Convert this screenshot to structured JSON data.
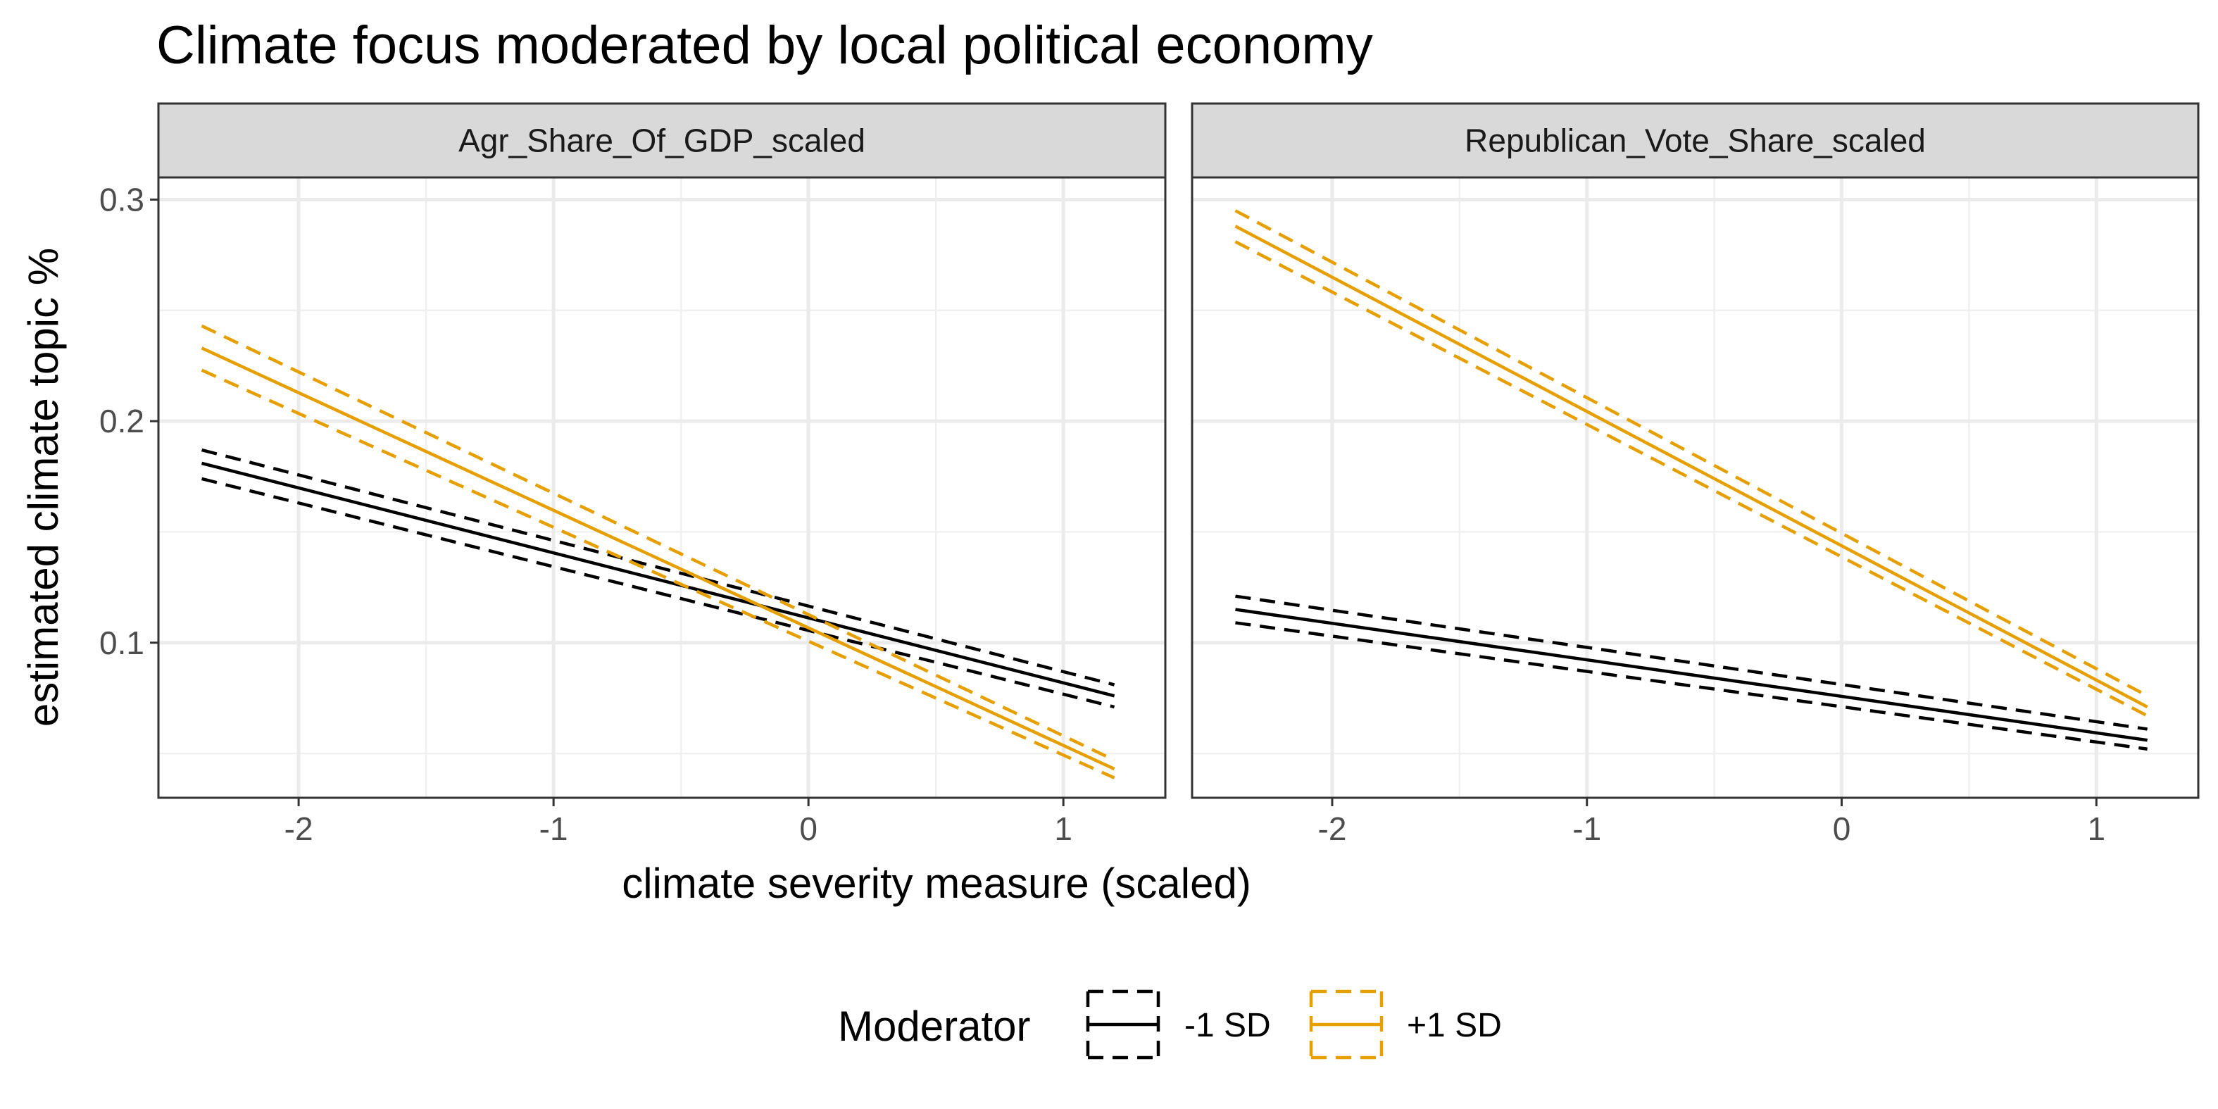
{
  "chart_data": {
    "type": "line",
    "title": "Climate focus moderated by local political economy",
    "xlabel": "climate severity measure (scaled)",
    "ylabel": "estimated climate topic %",
    "xlim": [
      -2.55,
      1.4
    ],
    "ylim": [
      0.03,
      0.31
    ],
    "x_ticks": [
      -2,
      -1,
      0,
      1
    ],
    "x_tick_labels": [
      "-2",
      "-1",
      "0",
      "1"
    ],
    "y_ticks": [
      0.1,
      0.2,
      0.3
    ],
    "y_tick_labels": [
      "0.1",
      "0.2",
      "0.3"
    ],
    "grid": true,
    "legend": {
      "title": "Moderator",
      "position": "bottom",
      "entries": [
        {
          "label": "-1 SD",
          "color": "#000000"
        },
        {
          "label": "+1 SD",
          "color": "#E69F00"
        }
      ]
    },
    "panels": [
      {
        "strip": "Agr_Share_Of_GDP_scaled",
        "series": [
          {
            "name": "-1 SD",
            "color": "#000000",
            "x": [
              -2.38,
              1.2
            ],
            "fit": [
              0.181,
              0.076
            ],
            "lower": [
              0.174,
              0.071
            ],
            "upper": [
              0.187,
              0.081
            ]
          },
          {
            "name": "+1 SD",
            "color": "#E69F00",
            "x": [
              -2.38,
              1.2
            ],
            "fit": [
              0.233,
              0.043
            ],
            "lower": [
              0.223,
              0.039
            ],
            "upper": [
              0.243,
              0.047
            ]
          }
        ]
      },
      {
        "strip": "Republican_Vote_Share_scaled",
        "series": [
          {
            "name": "-1 SD",
            "color": "#000000",
            "x": [
              -2.38,
              1.2
            ],
            "fit": [
              0.115,
              0.056
            ],
            "lower": [
              0.109,
              0.052
            ],
            "upper": [
              0.121,
              0.061
            ]
          },
          {
            "name": "+1 SD",
            "color": "#E69F00",
            "x": [
              -2.38,
              1.2
            ],
            "fit": [
              0.288,
              0.071
            ],
            "lower": [
              0.281,
              0.067
            ],
            "upper": [
              0.295,
              0.076
            ]
          }
        ]
      }
    ]
  }
}
